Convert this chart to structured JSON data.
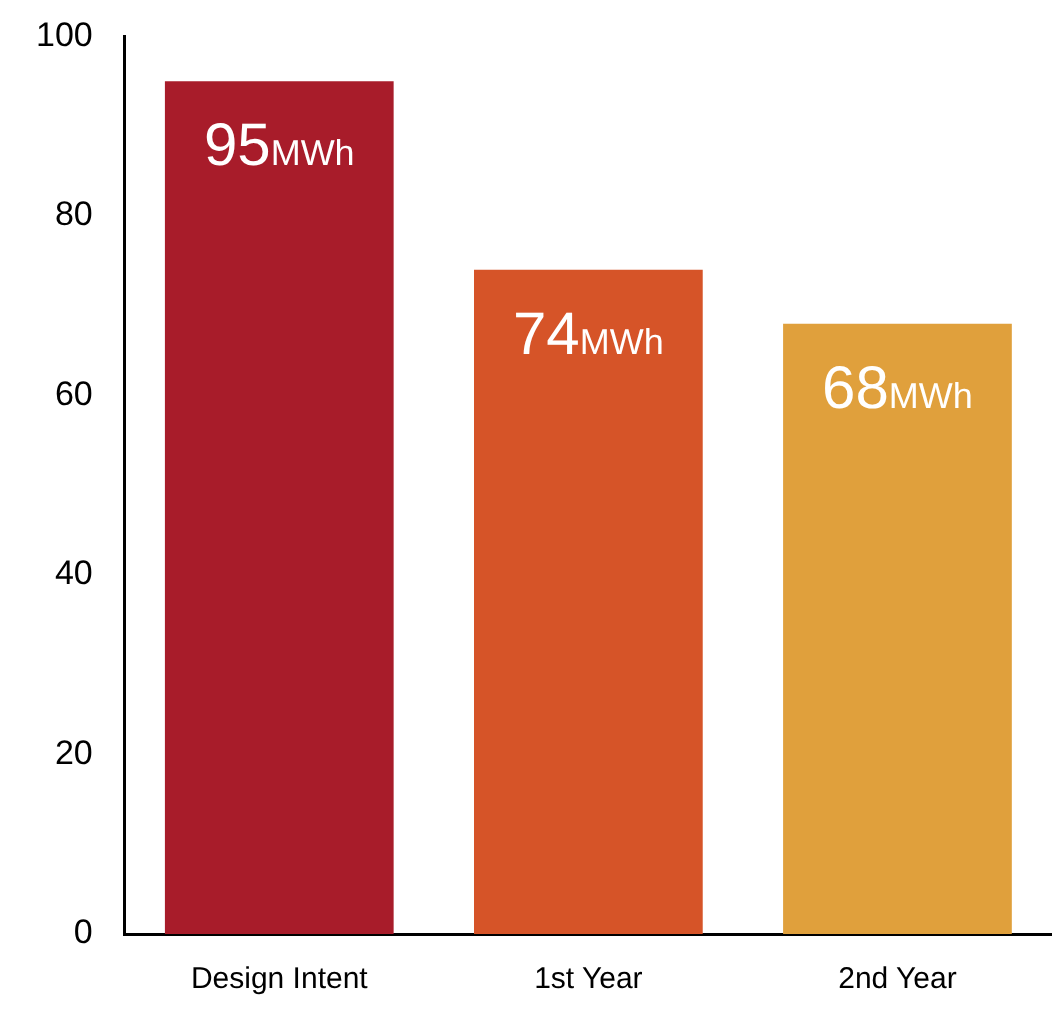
{
  "chart_data": {
    "type": "bar",
    "categories": [
      "Design Intent",
      "1st Year",
      "2nd Year"
    ],
    "values": [
      95,
      74,
      68
    ],
    "colors": [
      "#a81c2a",
      "#d65428",
      "#e0a03c"
    ],
    "value_labels": [
      "95MWh",
      "74MWh",
      "68MWh"
    ],
    "ylim": [
      0,
      100
    ],
    "yticks": [
      0,
      20,
      40,
      60,
      80,
      100
    ],
    "grid": false,
    "legend": false
  }
}
